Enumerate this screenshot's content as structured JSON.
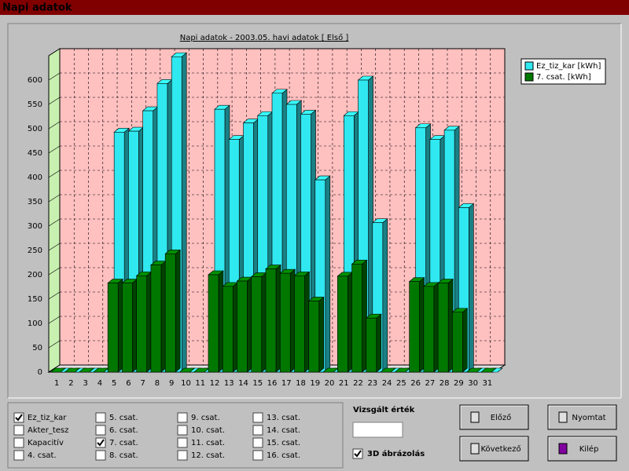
{
  "window": {
    "title": "Napi adatok"
  },
  "chart_data": {
    "type": "bar3d",
    "title": "Napi adatok - 2003.05. havi adatok [ Első ]",
    "categories": [
      "1",
      "2",
      "3",
      "4",
      "5",
      "6",
      "7",
      "8",
      "9",
      "10",
      "11",
      "12",
      "13",
      "14",
      "15",
      "16",
      "17",
      "18",
      "19",
      "20",
      "21",
      "22",
      "23",
      "24",
      "25",
      "26",
      "27",
      "28",
      "29",
      "30",
      "31"
    ],
    "series": [
      {
        "name": "Ez_tiz_kar [kWh]",
        "color": "#30e8f0",
        "values": [
          0,
          0,
          0,
          0,
          493,
          495,
          537,
          593,
          648,
          0,
          0,
          540,
          478,
          512,
          527,
          573,
          550,
          530,
          395,
          0,
          527,
          600,
          307,
          0,
          0,
          502,
          478,
          497,
          338,
          0,
          0
        ]
      },
      {
        "name": "7. csat. [kWh]",
        "color": "#007800",
        "values": [
          0,
          0,
          0,
          0,
          183,
          183,
          198,
          220,
          243,
          0,
          0,
          200,
          176,
          187,
          196,
          212,
          203,
          198,
          146,
          0,
          197,
          222,
          111,
          0,
          0,
          186,
          176,
          183,
          123,
          0,
          0
        ]
      }
    ],
    "ylim": [
      0,
      650
    ],
    "yticks": [
      0,
      50,
      100,
      150,
      200,
      250,
      300,
      350,
      400,
      450,
      500,
      550,
      600
    ],
    "grid": true,
    "legend": "upper right"
  },
  "channels": [
    {
      "label": "Ez_tiz_kar",
      "checked": true
    },
    {
      "label": "Akter_tesz",
      "checked": false
    },
    {
      "label": "Kapacitív",
      "checked": false
    },
    {
      "label": "4. csat.",
      "checked": false
    },
    {
      "label": "5. csat.",
      "checked": false
    },
    {
      "label": "6. csat.",
      "checked": false
    },
    {
      "label": "7. csat.",
      "checked": true
    },
    {
      "label": "8. csat.",
      "checked": false
    },
    {
      "label": "9. csat.",
      "checked": false
    },
    {
      "label": "10. csat.",
      "checked": false
    },
    {
      "label": "11. csat.",
      "checked": false
    },
    {
      "label": "12. csat.",
      "checked": false
    },
    {
      "label": "13. csat.",
      "checked": false
    },
    {
      "label": "14. csat.",
      "checked": false
    },
    {
      "label": "15. csat.",
      "checked": false
    },
    {
      "label": "16. csat.",
      "checked": false
    }
  ],
  "controls": {
    "value_label": "Vizsgált érték",
    "three_d": {
      "label": "3D ábrázolás",
      "checked": true
    },
    "buttons": [
      "Előző",
      "Következő",
      "Nyomtat",
      "Kilép"
    ]
  }
}
